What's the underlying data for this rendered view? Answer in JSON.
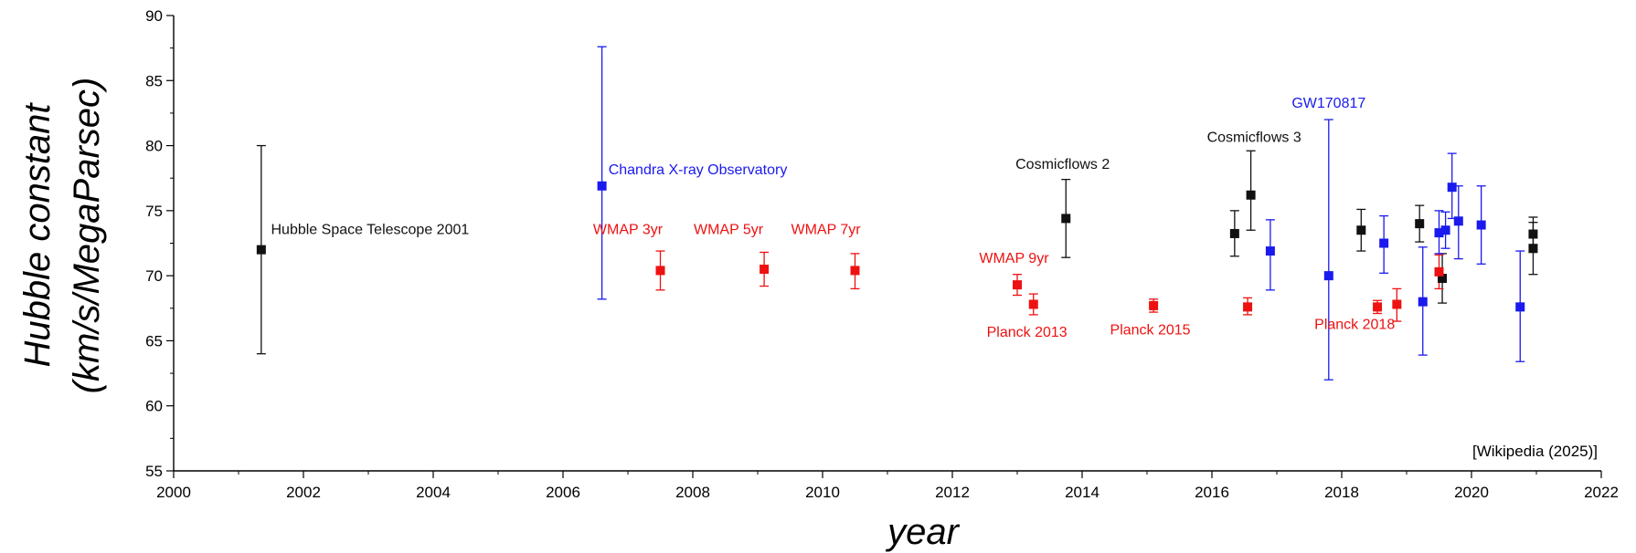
{
  "chart_data": {
    "type": "scatter",
    "title": "",
    "xlabel": "year",
    "ylabel_lines": [
      "Hubble constant",
      "(km/s/MegaParsec)"
    ],
    "xlim": [
      2000,
      2022
    ],
    "ylim": [
      55,
      90
    ],
    "xticks": [
      2000,
      2002,
      2004,
      2006,
      2008,
      2010,
      2012,
      2014,
      2016,
      2018,
      2020,
      2022
    ],
    "yticks": [
      55,
      60,
      65,
      70,
      75,
      80,
      85,
      90
    ],
    "credit": "[Wikipedia (2025)]",
    "colors": {
      "black": "#111111",
      "red": "#ee1111",
      "blue": "#1a1aee"
    },
    "series": [
      {
        "color": "black",
        "points": [
          {
            "x": 2001.35,
            "y": 72.0,
            "lo": 64.0,
            "hi": 80.0
          },
          {
            "x": 2013.75,
            "y": 74.4,
            "lo": 71.4,
            "hi": 77.4
          },
          {
            "x": 2016.35,
            "y": 73.24,
            "lo": 71.5,
            "hi": 75.0
          },
          {
            "x": 2016.6,
            "y": 76.2,
            "lo": 73.5,
            "hi": 79.6
          },
          {
            "x": 2018.3,
            "y": 73.5,
            "lo": 71.9,
            "hi": 75.1
          },
          {
            "x": 2019.2,
            "y": 74.0,
            "lo": 72.6,
            "hi": 75.4
          },
          {
            "x": 2019.55,
            "y": 69.8,
            "lo": 67.9,
            "hi": 71.7
          },
          {
            "x": 2020.95,
            "y": 73.2,
            "lo": 71.8,
            "hi": 74.5
          },
          {
            "x": 2020.95,
            "y": 72.1,
            "lo": 70.1,
            "hi": 74.1
          }
        ]
      },
      {
        "color": "red",
        "points": [
          {
            "x": 2007.5,
            "y": 70.4,
            "lo": 68.9,
            "hi": 71.9
          },
          {
            "x": 2009.1,
            "y": 70.5,
            "lo": 69.2,
            "hi": 71.8
          },
          {
            "x": 2010.5,
            "y": 70.4,
            "lo": 69.0,
            "hi": 71.7
          },
          {
            "x": 2013.0,
            "y": 69.3,
            "lo": 68.5,
            "hi": 70.1
          },
          {
            "x": 2013.25,
            "y": 67.8,
            "lo": 67.0,
            "hi": 68.6
          },
          {
            "x": 2015.1,
            "y": 67.7,
            "lo": 67.2,
            "hi": 68.2
          },
          {
            "x": 2016.55,
            "y": 67.6,
            "lo": 67.0,
            "hi": 68.3
          },
          {
            "x": 2018.55,
            "y": 67.6,
            "lo": 67.1,
            "hi": 68.1
          },
          {
            "x": 2018.85,
            "y": 67.8,
            "lo": 66.5,
            "hi": 69.0
          },
          {
            "x": 2019.5,
            "y": 70.3,
            "lo": 69.0,
            "hi": 71.6
          }
        ]
      },
      {
        "color": "blue",
        "points": [
          {
            "x": 2006.6,
            "y": 76.9,
            "lo": 68.2,
            "hi": 87.6
          },
          {
            "x": 2016.9,
            "y": 71.9,
            "lo": 68.9,
            "hi": 74.3
          },
          {
            "x": 2017.8,
            "y": 70.0,
            "lo": 62.0,
            "hi": 82.0
          },
          {
            "x": 2018.65,
            "y": 72.5,
            "lo": 70.2,
            "hi": 74.6
          },
          {
            "x": 2019.25,
            "y": 68.0,
            "lo": 63.9,
            "hi": 72.2
          },
          {
            "x": 2019.5,
            "y": 73.3,
            "lo": 71.7,
            "hi": 75.0
          },
          {
            "x": 2019.6,
            "y": 73.5,
            "lo": 72.1,
            "hi": 74.9
          },
          {
            "x": 2019.7,
            "y": 76.8,
            "lo": 74.4,
            "hi": 79.4
          },
          {
            "x": 2019.8,
            "y": 74.2,
            "lo": 71.3,
            "hi": 76.9
          },
          {
            "x": 2020.15,
            "y": 73.9,
            "lo": 70.9,
            "hi": 76.9
          },
          {
            "x": 2020.75,
            "y": 67.6,
            "lo": 63.4,
            "hi": 71.9
          }
        ]
      }
    ],
    "annotations": [
      {
        "text": "Hubble Space Telescope 2001",
        "color": "black",
        "x": 2001.5,
        "y": 73.2,
        "anchor": "start"
      },
      {
        "text": "Chandra X-ray Observatory",
        "color": "blue",
        "x": 2006.7,
        "y": 77.8,
        "anchor": "start"
      },
      {
        "text": "WMAP 3yr",
        "color": "red",
        "x": 2007.0,
        "y": 73.2,
        "anchor": "middle"
      },
      {
        "text": "WMAP 5yr",
        "color": "red",
        "x": 2008.55,
        "y": 73.2,
        "anchor": "middle"
      },
      {
        "text": "WMAP 7yr",
        "color": "red",
        "x": 2010.05,
        "y": 73.2,
        "anchor": "middle"
      },
      {
        "text": "WMAP 9yr",
        "color": "red",
        "x": 2012.95,
        "y": 71.0,
        "anchor": "middle"
      },
      {
        "text": "Planck 2013",
        "color": "red",
        "x": 2013.15,
        "y": 65.3,
        "anchor": "middle"
      },
      {
        "text": "Planck 2015",
        "color": "red",
        "x": 2015.05,
        "y": 65.5,
        "anchor": "middle"
      },
      {
        "text": "Planck 2018",
        "color": "red",
        "x": 2018.2,
        "y": 65.9,
        "anchor": "middle"
      },
      {
        "text": "Cosmicflows 2",
        "color": "black",
        "x": 2013.7,
        "y": 78.2,
        "anchor": "middle"
      },
      {
        "text": "Cosmicflows 3",
        "color": "black",
        "x": 2016.65,
        "y": 80.3,
        "anchor": "middle"
      },
      {
        "text": "GW170817",
        "color": "blue",
        "x": 2017.8,
        "y": 82.9,
        "anchor": "middle"
      }
    ]
  }
}
